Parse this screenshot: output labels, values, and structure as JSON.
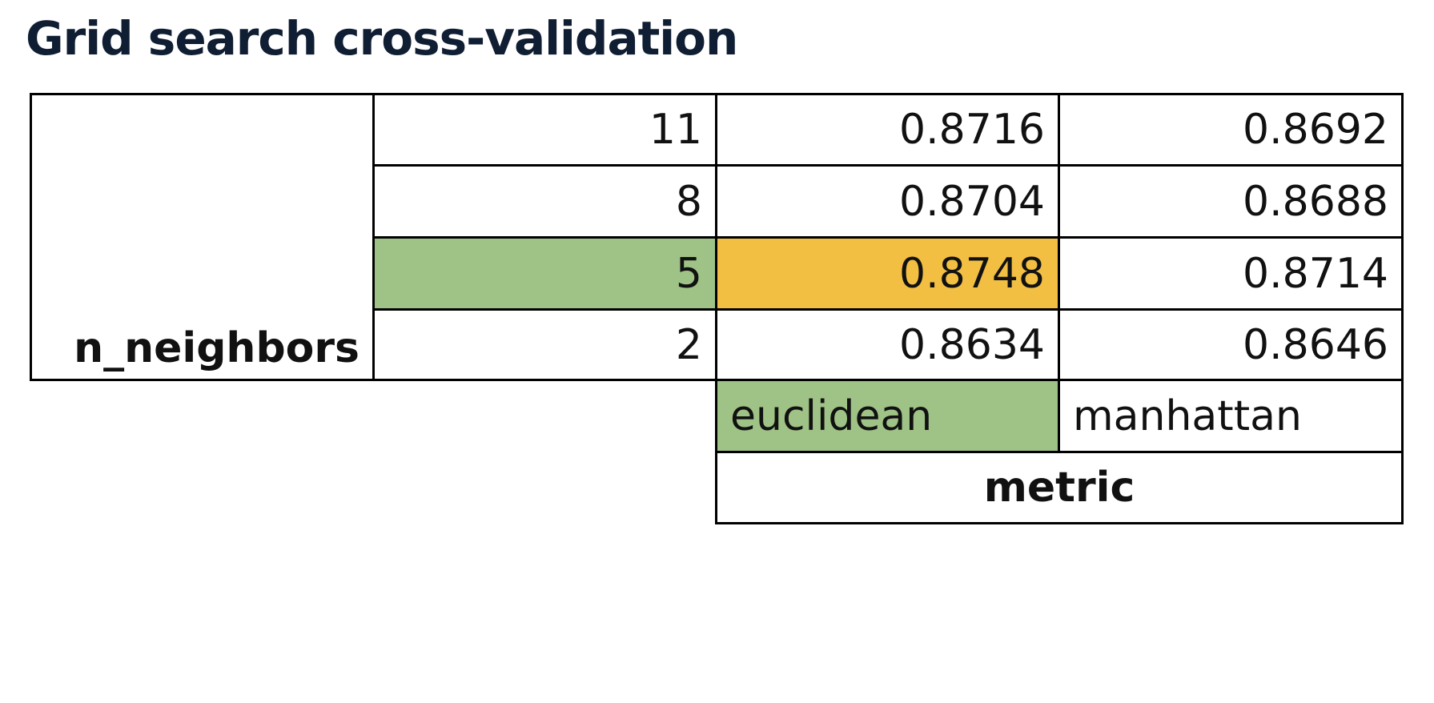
{
  "title": "Grid search cross-validation",
  "table": {
    "row_header": "n_neighbors",
    "rows": [
      {
        "key": "11",
        "values": [
          "0.8716",
          "0.8692"
        ]
      },
      {
        "key": "8",
        "values": [
          "0.8704",
          "0.8688"
        ]
      },
      {
        "key": "5",
        "values": [
          "0.8748",
          "0.8714"
        ]
      },
      {
        "key": "2",
        "values": [
          "0.8634",
          "0.8646"
        ]
      }
    ],
    "columns": [
      "euclidean",
      "manhattan"
    ],
    "column_header": "metric"
  }
}
